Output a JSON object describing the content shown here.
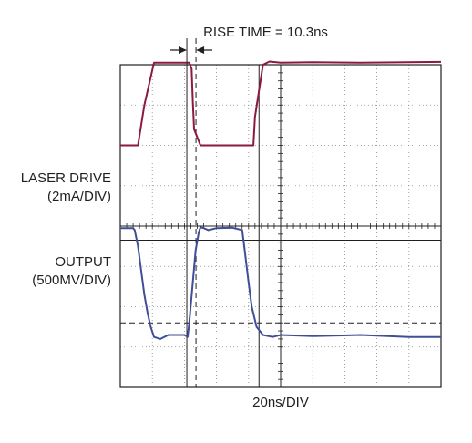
{
  "annotation": {
    "rise_time": "RISE TIME = 10.3ns"
  },
  "labels": {
    "laser_drive": "LASER DRIVE",
    "laser_drive_scale": "(2mA/DIV)",
    "output": "OUTPUT",
    "output_scale": "(500MV/DIV)",
    "timebase": "20ns/DIV"
  },
  "chart_data": {
    "type": "line",
    "title": "",
    "xlabel": "20ns/DIV",
    "grid": true,
    "divisions": {
      "x": 10,
      "y": 8
    },
    "xlim": [
      0,
      200
    ],
    "ylim": [
      0,
      8
    ],
    "x_unit": "ns",
    "series": [
      {
        "name": "LASER DRIVE",
        "color": "#8b1a3c",
        "y_scale": "2mA/DIV",
        "x": [
          0,
          11,
          15,
          21,
          43,
          44.5,
          45.2,
          46,
          50,
          51,
          83,
          84,
          89,
          93,
          100,
          120,
          150,
          200
        ],
        "y": [
          6.0,
          6.0,
          7.0,
          8.05,
          8.05,
          7.9,
          7.1,
          6.4,
          6.0,
          6.0,
          6.0,
          6.7,
          8.0,
          8.08,
          8.05,
          8.06,
          8.05,
          8.07
        ]
      },
      {
        "name": "OUTPUT",
        "color": "#3f4e96",
        "y_scale": "500MV/DIV",
        "x": [
          0,
          8,
          9,
          11,
          13,
          15,
          17,
          19,
          21,
          25,
          30,
          40,
          42,
          43,
          45,
          47,
          49,
          50,
          52,
          55,
          60,
          70,
          76,
          77,
          80,
          82,
          85,
          89,
          95,
          100,
          120,
          150,
          180,
          200
        ],
        "y": [
          3.95,
          3.95,
          3.9,
          3.5,
          2.9,
          2.3,
          1.85,
          1.5,
          1.25,
          1.2,
          1.3,
          1.3,
          1.25,
          1.6,
          2.5,
          3.4,
          3.85,
          3.97,
          3.95,
          3.9,
          3.95,
          3.96,
          3.9,
          3.6,
          2.6,
          2.0,
          1.5,
          1.3,
          1.25,
          1.3,
          1.27,
          1.3,
          1.25,
          1.25
        ]
      }
    ],
    "markers": {
      "solid_vertical_x": [
        41.5,
        86.5
      ],
      "dashed_vertical_x": [
        47.2
      ],
      "solid_horizontal_y": [
        3.65
      ],
      "dashed_horizontal_y": [
        1.6
      ]
    }
  }
}
